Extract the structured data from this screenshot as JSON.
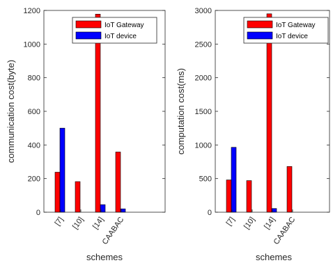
{
  "chart_data": [
    {
      "type": "bar",
      "categories": [
        "[7]",
        "[10]",
        "[14]",
        "CAABAC"
      ],
      "series": [
        {
          "name": "IoT Gateway",
          "values": [
            238,
            182,
            1178,
            358
          ],
          "color": "#ff0000"
        },
        {
          "name": "IoT device",
          "values": [
            500,
            0,
            45,
            20
          ],
          "color": "#0000ff"
        }
      ],
      "xlabel": "schemes",
      "ylabel": "communication cost(byte)",
      "ylim": [
        0,
        1200
      ],
      "yticks": [
        "0",
        "200",
        "400",
        "600",
        "800",
        "1000",
        "1200"
      ],
      "legend": "top-right",
      "grid": false
    },
    {
      "type": "bar",
      "categories": [
        "[7]",
        "[10]",
        "[14]",
        "CAABAC"
      ],
      "series": [
        {
          "name": "IoT Gateway",
          "values": [
            480,
            470,
            2950,
            680
          ],
          "color": "#ff0000"
        },
        {
          "name": "IoT device",
          "values": [
            965,
            0,
            55,
            0
          ],
          "color": "#0000ff"
        }
      ],
      "xlabel": "schemes",
      "ylabel": "computation cost(ms)",
      "ylim": [
        0,
        3000
      ],
      "yticks": [
        "0",
        "500",
        "1000",
        "1500",
        "2000",
        "2500",
        "3000"
      ],
      "legend": "top-right",
      "grid": false
    }
  ]
}
